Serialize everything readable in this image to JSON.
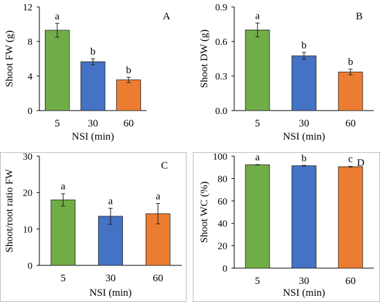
{
  "chart_data": [
    {
      "panel": "A",
      "type": "bar",
      "categories": [
        "5",
        "30",
        "60"
      ],
      "values": [
        9.3,
        5.65,
        3.55
      ],
      "errors": [
        0.8,
        0.35,
        0.3
      ],
      "letters": [
        "a",
        "b",
        "b"
      ],
      "ylim": [
        0,
        12
      ],
      "yticks": [
        "0",
        "4",
        "8",
        "12"
      ],
      "xlabel": "NSI (min)",
      "ylabel": "Shoot FW (g)",
      "colors": [
        "#70ad47",
        "#4472c4",
        "#ed7d31"
      ],
      "grid": false
    },
    {
      "panel": "B",
      "type": "bar",
      "categories": [
        "5",
        "30",
        "60"
      ],
      "values": [
        0.7,
        0.475,
        0.335
      ],
      "errors": [
        0.06,
        0.03,
        0.025
      ],
      "letters": [
        "a",
        "b",
        "b"
      ],
      "ylim": [
        0,
        0.9
      ],
      "yticks": [
        "0.0",
        "0.3",
        "0.6",
        "0.9"
      ],
      "xlabel": "NSI (min)",
      "ylabel": "Shoot DW (g)",
      "colors": [
        "#70ad47",
        "#4472c4",
        "#ed7d31"
      ],
      "grid": false
    },
    {
      "panel": "C",
      "type": "bar",
      "categories": [
        "5",
        "30",
        "60"
      ],
      "values": [
        18.0,
        13.5,
        14.2
      ],
      "errors": [
        1.7,
        2.2,
        2.8
      ],
      "letters": [
        "a",
        "a",
        "a"
      ],
      "ylim": [
        0,
        30
      ],
      "yticks": [
        "0",
        "10",
        "20",
        "30"
      ],
      "xlabel": "NSI (min)",
      "ylabel": "Shoot/root ratio FW",
      "colors": [
        "#70ad47",
        "#4472c4",
        "#ed7d31"
      ],
      "grid": false
    },
    {
      "panel": "D",
      "type": "bar",
      "categories": [
        "5",
        "30",
        "60"
      ],
      "values": [
        92.3,
        91.5,
        90.6
      ],
      "errors": [
        0.2,
        0.3,
        0.3
      ],
      "letters": [
        "a",
        "b",
        "c"
      ],
      "ylim": [
        0,
        100
      ],
      "yticks": [
        "0",
        "20",
        "40",
        "60",
        "80",
        "100"
      ],
      "xlabel": "NSI (min)",
      "ylabel": "Shoot WC (%)",
      "colors": [
        "#70ad47",
        "#4472c4",
        "#ed7d31"
      ],
      "grid": false
    }
  ]
}
